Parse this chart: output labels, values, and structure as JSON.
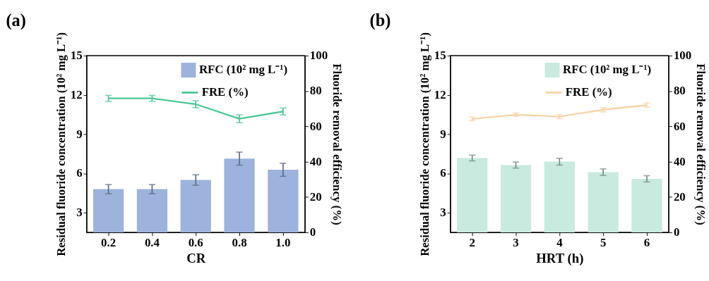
{
  "chart_data": [
    {
      "type": "bar",
      "title": "(a)",
      "categories": [
        "0.2",
        "0.4",
        "0.6",
        "0.8",
        "1.0"
      ],
      "xlabel": "CR",
      "ylabel": "Residual fluoride concentration (10² mg L⁻¹)",
      "y2label": "Fluoride removal efficiency (%)",
      "ylim": [
        1.5,
        15
      ],
      "yticks": [
        3,
        6,
        9,
        12,
        15
      ],
      "y2lim": [
        0,
        100
      ],
      "y2ticks": [
        0,
        20,
        40,
        60,
        80,
        100
      ],
      "legend": "top right",
      "grid": false,
      "series": [
        {
          "name": "RFC (10² mg L⁻¹)",
          "color": "#9db3de",
          "values": [
            4.8,
            4.8,
            5.5,
            7.13,
            6.28
          ],
          "errors": [
            0.35,
            0.35,
            0.4,
            0.5,
            0.5
          ]
        },
        {
          "name": "FRE (%)",
          "type": "line",
          "axis": "y2",
          "color": "#4cc795",
          "values": [
            75.8,
            75.8,
            72.5,
            64.3,
            68.4
          ],
          "errors": [
            1.7,
            1.7,
            2,
            2.2,
            2
          ]
        }
      ]
    },
    {
      "type": "bar",
      "title": "(b)",
      "categories": [
        "2",
        "3",
        "4",
        "5",
        "6"
      ],
      "xlabel": "HRT (h)",
      "ylabel": "Residual fluoride concentration (10² mg L⁻¹)",
      "y2label": "Fluoride removal efficiency (%)",
      "ylim": [
        1.5,
        15
      ],
      "yticks": [
        3,
        6,
        9,
        12,
        15
      ],
      "y2lim": [
        0,
        100
      ],
      "y2ticks": [
        0,
        20,
        40,
        60,
        80,
        100
      ],
      "legend": "top right",
      "grid": false,
      "series": [
        {
          "name": "RFC (10² mg L⁻¹)",
          "color": "#c9eadf",
          "values": [
            7.18,
            6.64,
            6.9,
            6.1,
            5.59
          ],
          "errors": [
            0.22,
            0.23,
            0.26,
            0.25,
            0.24
          ]
        },
        {
          "name": "FRE (%)",
          "type": "line",
          "axis": "y2",
          "color": "#f7d4aa",
          "values": [
            64.2,
            66.6,
            65.5,
            69.4,
            72.0
          ],
          "errors": [
            1,
            1,
            1.2,
            1.2,
            1.2
          ]
        }
      ]
    }
  ]
}
